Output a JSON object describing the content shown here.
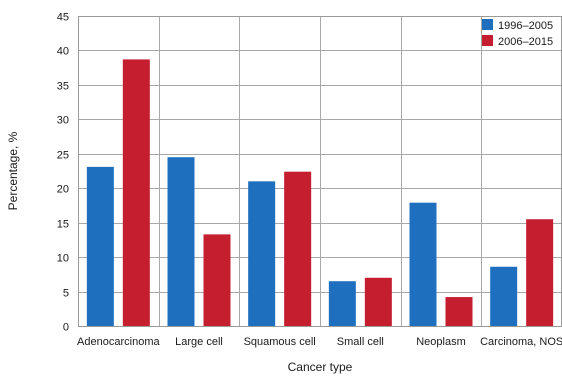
{
  "chart_data": {
    "type": "bar",
    "categories": [
      "Adenocarcinoma",
      "Large cell",
      "Squamous cell",
      "Small cell",
      "Neoplasm",
      "Carcinoma, NOS"
    ],
    "series": [
      {
        "name": "1996–2005",
        "color": "#1f6fbf",
        "values": [
          23.1,
          24.5,
          21.0,
          6.5,
          17.9,
          8.6
        ]
      },
      {
        "name": "2006–2015",
        "color": "#c41e2f",
        "values": [
          38.7,
          13.3,
          22.4,
          7.0,
          4.2,
          15.5
        ]
      }
    ],
    "title": "",
    "xlabel": "Cancer type",
    "ylabel": "Percentage, %",
    "ylim": [
      0,
      45
    ],
    "yticks": [
      0,
      5,
      10,
      15,
      20,
      25,
      30,
      35,
      40,
      45
    ],
    "grid": true,
    "legend_position": "top-right"
  }
}
